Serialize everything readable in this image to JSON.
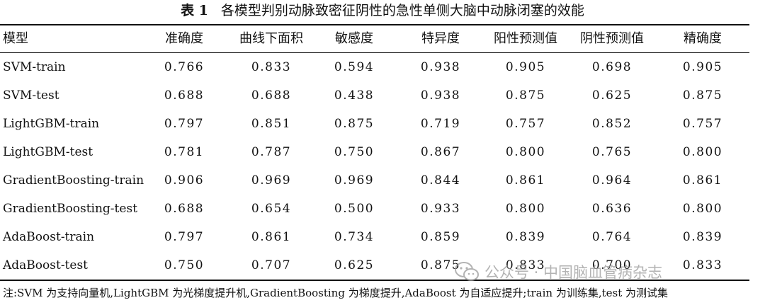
{
  "caption": {
    "label": "表 1",
    "title": "各模型判别动脉致密征阴性的急性单侧大脑中动脉闭塞的效能"
  },
  "table": {
    "headers": [
      "模型",
      "准确度",
      "曲线下面积",
      "敏感度",
      "特异度",
      "阳性预测值",
      "阴性预测值",
      "精确度"
    ],
    "rows": [
      [
        "SVM-train",
        "0.766",
        "0.833",
        "0.594",
        "0.938",
        "0.905",
        "0.698",
        "0.905"
      ],
      [
        "SVM-test",
        "0.688",
        "0.688",
        "0.438",
        "0.938",
        "0.875",
        "0.625",
        "0.875"
      ],
      [
        "LightGBM-train",
        "0.797",
        "0.851",
        "0.875",
        "0.719",
        "0.757",
        "0.852",
        "0.757"
      ],
      [
        "LightGBM-test",
        "0.781",
        "0.787",
        "0.750",
        "0.867",
        "0.800",
        "0.765",
        "0.800"
      ],
      [
        "GradientBoosting-train",
        "0.906",
        "0.969",
        "0.969",
        "0.844",
        "0.861",
        "0.964",
        "0.861"
      ],
      [
        "GradientBoosting-test",
        "0.688",
        "0.654",
        "0.500",
        "0.933",
        "0.800",
        "0.636",
        "0.800"
      ],
      [
        "AdaBoost-train",
        "0.797",
        "0.861",
        "0.734",
        "0.859",
        "0.839",
        "0.764",
        "0.839"
      ],
      [
        "AdaBoost-test",
        "0.750",
        "0.707",
        "0.625",
        "0.875",
        "0.833",
        "0.700",
        "0.833"
      ]
    ]
  },
  "note": "注:SVM 为支持向量机,LightGBM 为光梯度提升机,GradientBoosting 为梯度提升,AdaBoost 为自适应提升;train 为训练集,test 为测试集",
  "watermark": {
    "text": "公众号 · 中国脑血管病杂志",
    "icon": "wechat-icon"
  }
}
